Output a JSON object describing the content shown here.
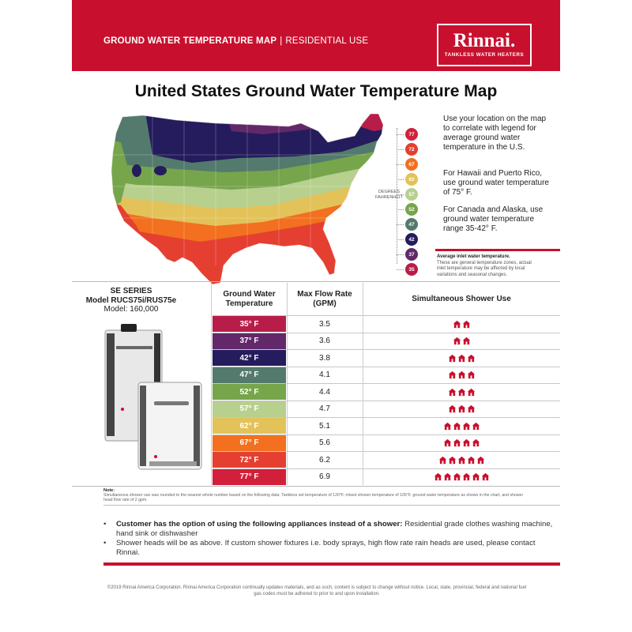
{
  "header": {
    "title_bold": "GROUND WATER TEMPERATURE MAP",
    "separator": "|",
    "title_light": "RESIDENTIAL USE",
    "logo_name": "Rinnai.",
    "logo_tagline": "TANKLESS WATER HEATERS"
  },
  "main_title": "United States Ground Water Temperature Map",
  "legend": {
    "unit_line1": "DEGREES",
    "unit_line2": "FAHRENHEIT",
    "items": [
      {
        "value": "77",
        "color": "#d2203a"
      },
      {
        "value": "72",
        "color": "#e43f31"
      },
      {
        "value": "67",
        "color": "#f2701f"
      },
      {
        "value": "62",
        "color": "#e3c25a"
      },
      {
        "value": "57",
        "color": "#b7d08e"
      },
      {
        "value": "52",
        "color": "#76a54c"
      },
      {
        "value": "47",
        "color": "#537a6d"
      },
      {
        "value": "42",
        "color": "#241c5c"
      },
      {
        "value": "37",
        "color": "#62286a"
      },
      {
        "value": "35",
        "color": "#b81d4a"
      }
    ]
  },
  "side_text": {
    "p1": "Use your location on the map to correlate with legend for average ground water temperature in the U.S.",
    "p2": "For Hawaii and Puerto Rico, use ground water temperature of 75° F.",
    "p3": "For Canada and Alaska, use ground water temperature range 35-42° F.",
    "note_title": "Average inlet water temperature.",
    "note_body": "These are general temperature zones, actual inlet temperature may be affected by local variations and seasonal changes."
  },
  "table": {
    "model_series": "SE SERIES",
    "model_name": "Model RUCS75i/RUS75e",
    "model_number": "Model: 160,000",
    "col_temp": "Ground Water Temperature",
    "col_flow": "Max Flow Rate (GPM)",
    "col_shower": "Simultaneous Shower Use",
    "rows": [
      {
        "temp": "35° F",
        "flow": "3.5",
        "showers": 2,
        "color": "#b81d4a"
      },
      {
        "temp": "37° F",
        "flow": "3.6",
        "showers": 2,
        "color": "#62286a"
      },
      {
        "temp": "42° F",
        "flow": "3.8",
        "showers": 3,
        "color": "#241c5c"
      },
      {
        "temp": "47° F",
        "flow": "4.1",
        "showers": 3,
        "color": "#537a6d"
      },
      {
        "temp": "52° F",
        "flow": "4.4",
        "showers": 3,
        "color": "#76a54c"
      },
      {
        "temp": "57° F",
        "flow": "4.7",
        "showers": 3,
        "color": "#b7d08e"
      },
      {
        "temp": "62° F",
        "flow": "5.1",
        "showers": 4,
        "color": "#e3c25a"
      },
      {
        "temp": "67° F",
        "flow": "5.6",
        "showers": 4,
        "color": "#f2701f"
      },
      {
        "temp": "72° F",
        "flow": "6.2",
        "showers": 5,
        "color": "#e43f31"
      },
      {
        "temp": "77° F",
        "flow": "6.9",
        "showers": 6,
        "color": "#d2203a"
      }
    ]
  },
  "note": {
    "title": "Note:",
    "text": "Simultaneous shower use was rounded to the nearest whole number based on the following data: Tankless set temperature of 120°F, mixed shower temperature of 105°F, ground water temperature as shown in the chart, and shower head flow rate of 2 gpm."
  },
  "bullets": [
    {
      "bold": "Customer has the option of using the following appliances instead of a shower:",
      "text": " Residential grade clothes washing machine, hand sink or dishwasher"
    },
    {
      "bold": "",
      "text": "Shower heads will be as above. If custom shower fixtures  i.e. body sprays, high flow rate rain heads are used, please contact Rinnai."
    }
  ],
  "footer": "©2019 Rinnai America Corporation. Rinnai America Corporation continually updates materials, and as such, content is subject to change without notice. Local, state, provincial, federal and national fuel gas codes must be adhered to prior to and upon installation.",
  "colors": {
    "brand_red": "#c8102e",
    "shower_icon": "#c8102e"
  }
}
